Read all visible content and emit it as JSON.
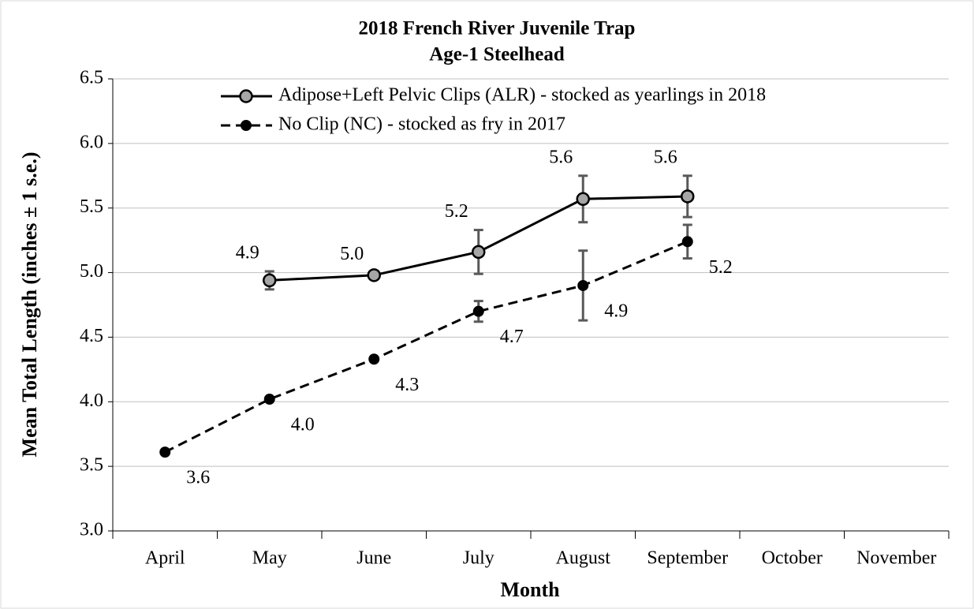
{
  "chart_data": {
    "type": "line",
    "title": "2018 French River Juvenile Trap",
    "subtitle": "Age-1 Steelhead",
    "x_label": "Month",
    "y_label": "Mean Total Length (inches ± 1 s.e.)",
    "categories": [
      "April",
      "May",
      "June",
      "July",
      "August",
      "September",
      "October",
      "November"
    ],
    "series": [
      {
        "name": "Adipose+Left Pelvic Clips (ALR) - stocked as yearlings in 2018",
        "color": "#000000",
        "marker_fill": "#a6a6a6",
        "dash": false,
        "values": [
          null,
          4.94,
          4.98,
          5.16,
          5.57,
          5.59,
          null,
          null
        ],
        "errors": [
          null,
          0.07,
          0.02,
          0.17,
          0.18,
          0.16,
          null,
          null
        ],
        "value_labels": [
          null,
          "4.9",
          "5.0",
          "5.2",
          "5.6",
          "5.6",
          null,
          null
        ]
      },
      {
        "name": "No Clip (NC) - stocked as fry in 2017",
        "color": "#000000",
        "marker_fill": "#000000",
        "dash": true,
        "values": [
          3.61,
          4.02,
          4.33,
          4.7,
          4.9,
          5.24,
          null,
          null
        ],
        "errors": [
          0,
          0,
          0,
          0.08,
          0.27,
          0.13,
          null,
          null
        ],
        "value_labels": [
          "3.6",
          "4.0",
          "4.3",
          "4.7",
          "4.9",
          "5.2",
          null,
          null
        ]
      }
    ],
    "ylim": [
      3.0,
      6.5
    ],
    "yticks": [
      {
        "value": 3,
        "label": "3.0"
      },
      3.5,
      {
        "value": 4,
        "label": "4.0"
      },
      4.5,
      {
        "value": 5,
        "label": "5.0"
      },
      5.5,
      {
        "value": 6,
        "label": "6.0"
      },
      6.5
    ],
    "grid": true,
    "legend": "top",
    "error_color": "#595959"
  }
}
